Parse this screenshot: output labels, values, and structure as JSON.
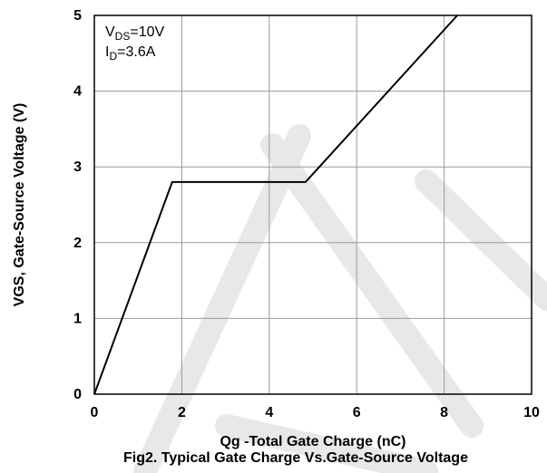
{
  "chart_data": {
    "type": "line",
    "xlabel": "Qg -Total Gate Charge (nC)",
    "ylabel": "VGS, Gate-Source Voltage (V)",
    "caption": "Fig2. Typical Gate Charge Vs.Gate-Source Voltage",
    "xlim": [
      0,
      10
    ],
    "ylim": [
      0,
      5
    ],
    "xticks": [
      0,
      2,
      4,
      6,
      8,
      10
    ],
    "yticks": [
      0,
      1,
      2,
      3,
      4,
      5
    ],
    "grid": true,
    "annotation": {
      "vds": {
        "prefix": "V",
        "sub": "DS",
        "suffix": "=10V"
      },
      "id": {
        "prefix": "I",
        "sub": "D",
        "suffix": "=3.6A"
      }
    },
    "series": [
      {
        "x": [
          0,
          1.78,
          4.83,
          8.3
        ],
        "y": [
          0,
          2.8,
          2.8,
          5.0
        ]
      }
    ],
    "colors": {
      "line": "#000000",
      "grid": "#9a9a9a",
      "watermark": "#e8e8e8"
    }
  }
}
